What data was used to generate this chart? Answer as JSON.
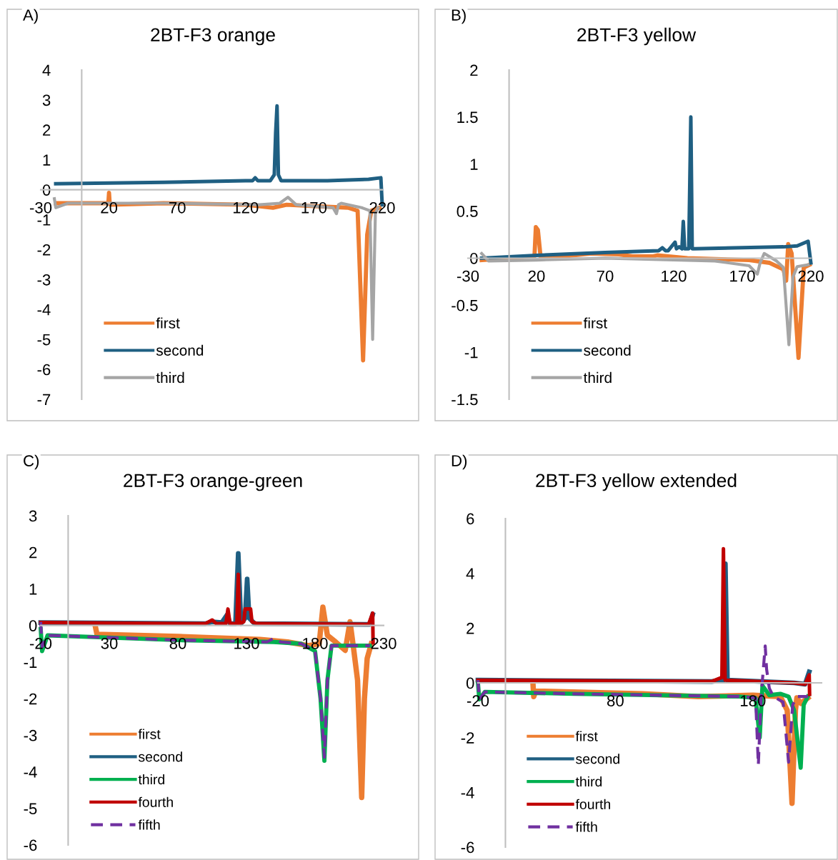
{
  "chart_data": [
    {
      "type": "line",
      "title": "2BT-F3 orange",
      "annotations": [
        "A)"
      ],
      "xlim": [
        -30,
        220
      ],
      "xticks": [
        -30,
        20,
        70,
        120,
        170,
        220
      ],
      "ylim": [
        -7,
        4
      ],
      "yticks": [
        -7,
        -6,
        -5,
        -4,
        -3,
        -2,
        -1,
        0,
        1,
        2,
        3,
        4
      ],
      "legend": "bottom left",
      "grid": false,
      "series": [
        {
          "name": "first",
          "color": "#ed7d31",
          "x": [
            -19,
            19.5,
            20,
            20.5,
            21,
            60,
            120,
            140,
            150,
            170,
            195,
            202,
            206,
            209,
            212,
            218
          ],
          "values": [
            -0.45,
            -0.45,
            -0.1,
            -0.45,
            -0.5,
            -0.45,
            -0.5,
            -0.6,
            -0.5,
            -0.55,
            -0.6,
            -0.7,
            -5.7,
            -1.5,
            -0.7,
            -0.6
          ]
        },
        {
          "name": "second",
          "color": "#1f5f82",
          "x": [
            -19,
            60,
            120,
            125,
            127,
            129,
            138,
            141,
            142,
            143,
            144,
            146,
            180,
            210,
            219,
            220
          ],
          "values": [
            0.2,
            0.25,
            0.3,
            0.3,
            0.4,
            0.3,
            0.3,
            0.5,
            1.9,
            2.8,
            0.5,
            0.3,
            0.3,
            0.35,
            0.4,
            -0.5
          ]
        },
        {
          "name": "third",
          "color": "#a5a5a5",
          "x": [
            -20,
            -19,
            -10,
            60,
            130,
            145,
            151,
            157,
            170,
            184,
            186.5,
            188,
            190,
            205,
            211,
            213,
            215,
            217
          ],
          "values": [
            -0.3,
            -0.6,
            -0.45,
            -0.45,
            -0.5,
            -0.45,
            -0.25,
            -0.5,
            -0.55,
            -0.6,
            -0.8,
            -0.5,
            -0.45,
            -0.6,
            -0.7,
            -5.0,
            -0.8,
            -0.6
          ]
        }
      ]
    },
    {
      "type": "line",
      "title": "2BT-F3 yellow",
      "annotations": [
        "B)"
      ],
      "xlim": [
        -30,
        220
      ],
      "xticks": [
        -30,
        20,
        70,
        120,
        170,
        220
      ],
      "ylim": [
        -1.5,
        2
      ],
      "yticks": [
        -1.5,
        -1,
        -0.5,
        0,
        0.5,
        1,
        1.5,
        2
      ],
      "legend": "bottom left",
      "grid": false,
      "series": [
        {
          "name": "first",
          "color": "#ed7d31",
          "x": [
            -20,
            18.5,
            19.5,
            21,
            23,
            40,
            60,
            80,
            90,
            105,
            108,
            130,
            175,
            190,
            200,
            202,
            203.5,
            206,
            211,
            214.8,
            219
          ],
          "values": [
            -0.02,
            0.02,
            0.33,
            0.3,
            0.01,
            0.02,
            0.05,
            0.04,
            0.02,
            0.02,
            0.03,
            0.0,
            -0.02,
            -0.05,
            -0.12,
            -0.24,
            0.15,
            0.05,
            -1.06,
            -0.1,
            -0.07
          ]
        },
        {
          "name": "second",
          "color": "#1f5f82",
          "x": [
            -20,
            20,
            70,
            109,
            111.7,
            114,
            116,
            121,
            122,
            124,
            126,
            127,
            128,
            131,
            132.5,
            133.5,
            135,
            200,
            210,
            218,
            220
          ],
          "values": [
            0,
            0.03,
            0.06,
            0.08,
            0.11,
            0.08,
            0.08,
            0.17,
            0.1,
            0.12,
            0.1,
            0.39,
            0.1,
            0.1,
            1.5,
            0.1,
            0.1,
            0.12,
            0.13,
            0.18,
            -0.05
          ]
        },
        {
          "name": "third",
          "color": "#a5a5a5",
          "x": [
            -20,
            -15,
            20,
            70,
            150,
            175,
            181,
            183,
            186,
            195,
            200,
            204,
            207,
            210,
            218
          ],
          "values": [
            0.05,
            -0.03,
            -0.02,
            0.0,
            -0.03,
            -0.08,
            -0.17,
            -0.05,
            0.05,
            -0.03,
            -0.1,
            -0.92,
            -0.2,
            -0.09,
            -0.07
          ]
        }
      ]
    },
    {
      "type": "line",
      "title": "2BT-F3 orange-green",
      "annotations": [
        "C)"
      ],
      "xlim": [
        -20,
        230
      ],
      "xticks": [
        -20,
        30,
        80,
        130,
        180,
        230
      ],
      "ylim": [
        -6,
        3
      ],
      "yticks": [
        -6,
        -5,
        -4,
        -3,
        -2,
        -1,
        0,
        1,
        2,
        3
      ],
      "legend": "bottom left",
      "grid": false,
      "series": [
        {
          "name": "first",
          "color": "#ed7d31",
          "x": [
            20,
            21,
            80,
            140,
            160,
            175,
            183,
            185.7,
            189,
            195,
            202,
            205.5,
            208,
            211,
            214,
            216,
            218,
            221
          ],
          "values": [
            -0.06,
            -0.24,
            -0.3,
            -0.38,
            -0.45,
            -0.55,
            -0.5,
            0.5,
            -0.27,
            -0.45,
            -0.68,
            0.1,
            -0.6,
            -1.5,
            -4.7,
            -2.0,
            -0.9,
            -0.5
          ]
        },
        {
          "name": "second",
          "color": "#1f5f82",
          "x": [
            -20,
            100,
            105,
            112,
            116,
            118,
            122,
            124,
            126,
            129,
            130.5,
            132,
            136,
            220,
            222
          ],
          "values": [
            0.08,
            0.05,
            0.1,
            0.08,
            0.3,
            0.05,
            0.05,
            1.97,
            0.05,
            0.2,
            1.27,
            0.2,
            0.05,
            0.03,
            0.3
          ]
        },
        {
          "name": "third",
          "color": "#00b050",
          "x": [
            -20,
            -19,
            -15,
            30,
            80,
            150,
            170,
            180,
            184,
            186.8,
            189,
            192,
            220
          ],
          "values": [
            -0.1,
            -0.7,
            -0.27,
            -0.33,
            -0.4,
            -0.45,
            -0.5,
            -0.7,
            -2.0,
            -3.7,
            -1.5,
            -0.55,
            -0.55
          ]
        },
        {
          "name": "fourth",
          "color": "#c00000",
          "x": [
            -20,
            100,
            105,
            108,
            115,
            116.5,
            118,
            123,
            124,
            125,
            128,
            129,
            133,
            134,
            138,
            219,
            222,
            222.3
          ],
          "values": [
            0.08,
            0.05,
            0.15,
            0.05,
            0.05,
            0.45,
            0.05,
            0.05,
            1.4,
            0.05,
            0.1,
            0.45,
            0.45,
            0.1,
            0.05,
            0.03,
            0.34,
            -0.47
          ]
        },
        {
          "name": "fifth",
          "color": "#7030a0",
          "line_style": "dashed",
          "x": [
            -20,
            -19,
            -15,
            30,
            80,
            145,
            150,
            155,
            170,
            180,
            184,
            186.8,
            189,
            192,
            220
          ],
          "values": [
            0.1,
            -0.58,
            -0.27,
            -0.33,
            -0.4,
            -0.45,
            -0.35,
            -0.45,
            -0.5,
            -0.7,
            -2.0,
            -3.6,
            -1.5,
            -0.55,
            -0.55
          ]
        }
      ]
    },
    {
      "type": "line",
      "title": "2BT-F3 yellow extended",
      "annotations": [
        "D)"
      ],
      "xlim": [
        -20,
        230
      ],
      "xticks": [
        -20,
        80,
        180
      ],
      "ylim": [
        -6,
        6
      ],
      "yticks": [
        -6,
        -4,
        -2,
        0,
        2,
        4,
        6
      ],
      "legend": "bottom left",
      "grid": false,
      "series": [
        {
          "name": "first",
          "color": "#ed7d31",
          "x": [
            20,
            20.6,
            22,
            100,
            140,
            180,
            200,
            205,
            208.5,
            211,
            212,
            215,
            220
          ],
          "values": [
            0.0,
            -0.5,
            -0.3,
            -0.4,
            -0.5,
            -0.45,
            -0.5,
            -1.0,
            -4.4,
            -1.0,
            -0.55,
            -0.75,
            -0.55
          ]
        },
        {
          "name": "second",
          "color": "#1f5f82",
          "x": [
            -20,
            150,
            158.5,
            160,
            161.5,
            210,
            218,
            221
          ],
          "values": [
            0.1,
            0.05,
            0.1,
            4.35,
            0.1,
            0.0,
            -0.05,
            0.4
          ]
        },
        {
          "name": "third",
          "color": "#00b050",
          "x": [
            -20,
            -19,
            -15,
            50,
            170,
            182,
            185,
            187,
            192,
            200,
            206,
            210,
            214.8,
            217,
            220
          ],
          "values": [
            0,
            -0.6,
            -0.33,
            -0.4,
            -0.5,
            -0.55,
            -2.0,
            -0.1,
            -0.45,
            -0.4,
            -0.5,
            -1.0,
            -3.1,
            -0.8,
            -0.5
          ]
        },
        {
          "name": "fourth",
          "color": "#c00000",
          "x": [
            -20,
            150,
            157.5,
            158.6,
            159.8,
            161,
            210,
            218,
            221,
            221.3
          ],
          "values": [
            0.1,
            0.05,
            0.2,
            4.9,
            0.1,
            0.1,
            0.0,
            -0.05,
            0.29,
            -0.42
          ]
        },
        {
          "name": "fifth",
          "color": "#7030a0",
          "line_style": "dashed",
          "x": [
            -20,
            -19,
            -15,
            50,
            170,
            182,
            184,
            186,
            189,
            190,
            192,
            195,
            202,
            206,
            209,
            212,
            220
          ],
          "values": [
            0.1,
            -0.6,
            -0.33,
            -0.4,
            -0.5,
            -0.55,
            -3.0,
            -0.5,
            1.35,
            0.5,
            -0.2,
            -0.5,
            -0.7,
            -2.9,
            -0.8,
            -0.5,
            -0.5
          ]
        }
      ]
    }
  ]
}
